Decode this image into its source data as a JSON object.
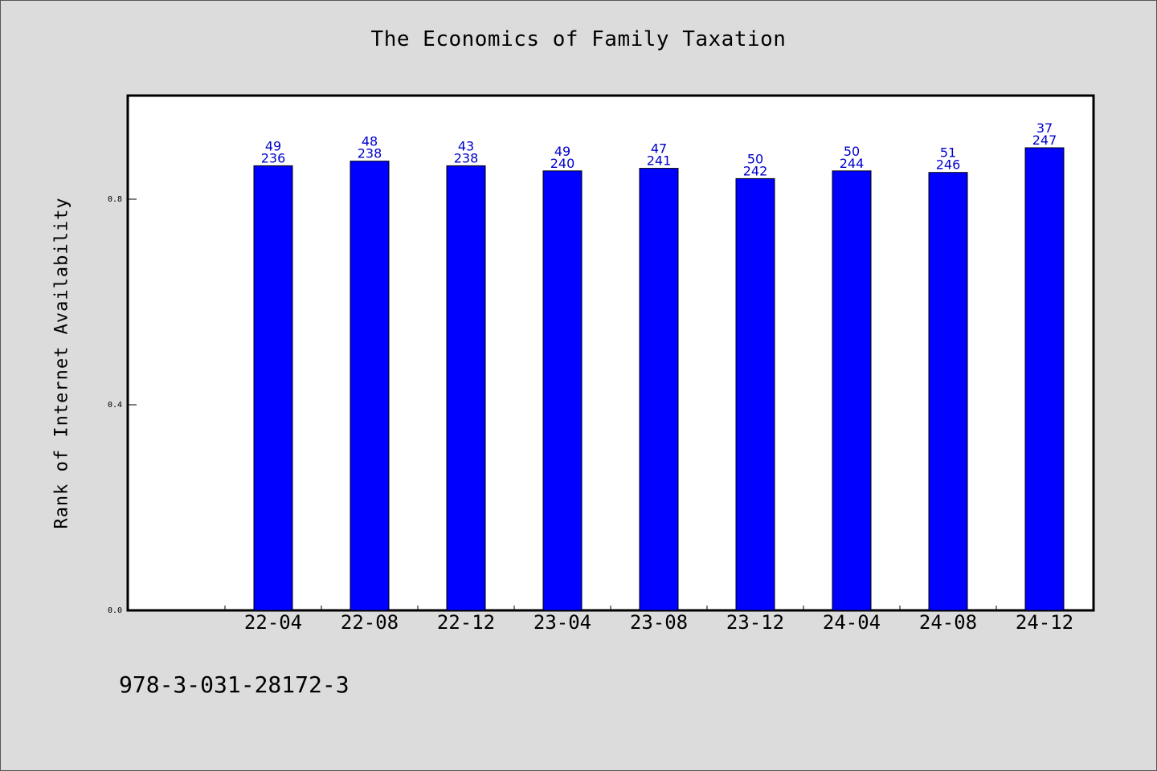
{
  "chart_data": {
    "type": "bar",
    "title": "The Economics of Family Taxation",
    "xlabel": "",
    "ylabel": "Rank of Internet Availability",
    "ylim": [
      0,
      1.0
    ],
    "yticks": [
      "0.0",
      "0.4",
      "0.8"
    ],
    "ytick_values": [
      0.0,
      0.4,
      0.8
    ],
    "categories": [
      "22-04",
      "22-08",
      "22-12",
      "23-04",
      "23-08",
      "23-12",
      "24-04",
      "24-08",
      "24-12"
    ],
    "values": [
      0.865,
      0.874,
      0.865,
      0.855,
      0.86,
      0.84,
      0.855,
      0.852,
      0.9
    ],
    "label_top": [
      "49",
      "48",
      "43",
      "49",
      "47",
      "50",
      "50",
      "51",
      "37"
    ],
    "label_bottom": [
      "236",
      "238",
      "238",
      "240",
      "241",
      "242",
      "244",
      "246",
      "247"
    ],
    "bar_color": "#0000ff",
    "label_color": "#0000cc",
    "grid": false,
    "legend": "none"
  },
  "footer": {
    "text": "978-3-031-28172-3"
  }
}
